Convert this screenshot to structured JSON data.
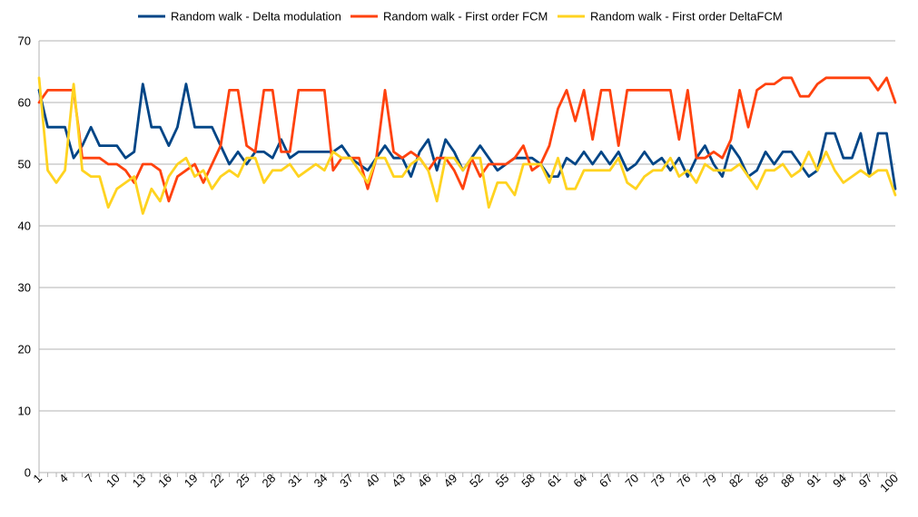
{
  "chart_data": {
    "type": "line",
    "title": "",
    "xlabel": "",
    "ylabel": "",
    "x": [
      1,
      2,
      3,
      4,
      5,
      6,
      7,
      8,
      9,
      10,
      11,
      12,
      13,
      14,
      15,
      16,
      17,
      18,
      19,
      20,
      21,
      22,
      23,
      24,
      25,
      26,
      27,
      28,
      29,
      30,
      31,
      32,
      33,
      34,
      35,
      36,
      37,
      38,
      39,
      40,
      41,
      42,
      43,
      44,
      45,
      46,
      47,
      48,
      49,
      50,
      51,
      52,
      53,
      54,
      55,
      56,
      57,
      58,
      59,
      60,
      61,
      62,
      63,
      64,
      65,
      66,
      67,
      68,
      69,
      70,
      71,
      72,
      73,
      74,
      75,
      76,
      77,
      78,
      79,
      80,
      81,
      82,
      83,
      84,
      85,
      86,
      87,
      88,
      89,
      90,
      91,
      92,
      93,
      94,
      95,
      96,
      97,
      98,
      99,
      100
    ],
    "x_tick_labels": [
      "1",
      "4",
      "7",
      "10",
      "13",
      "16",
      "19",
      "22",
      "25",
      "28",
      "31",
      "34",
      "37",
      "40",
      "43",
      "46",
      "49",
      "52",
      "55",
      "58",
      "61",
      "64",
      "67",
      "70",
      "73",
      "76",
      "79",
      "82",
      "85",
      "88",
      "91",
      "94",
      "97",
      "100"
    ],
    "ylim": [
      0,
      70
    ],
    "y_ticks": [
      0,
      10,
      20,
      30,
      40,
      50,
      60,
      70
    ],
    "grid": "horizontal",
    "legend_position": "top",
    "series": [
      {
        "name": "Random walk - Delta modulation",
        "color": "#004586",
        "values": [
          62,
          56,
          56,
          56,
          51,
          53,
          56,
          53,
          53,
          53,
          51,
          52,
          63,
          56,
          56,
          53,
          56,
          63,
          56,
          56,
          56,
          53,
          50,
          52,
          50,
          52,
          52,
          51,
          54,
          51,
          52,
          52,
          52,
          52,
          52,
          53,
          51,
          50,
          49,
          51,
          53,
          51,
          51,
          48,
          52,
          54,
          49,
          54,
          52,
          49,
          51,
          53,
          51,
          49,
          50,
          51,
          51,
          51,
          50,
          48,
          48,
          51,
          50,
          52,
          50,
          52,
          50,
          52,
          49,
          50,
          52,
          50,
          51,
          49,
          51,
          48,
          51,
          53,
          50,
          48,
          53,
          51,
          48,
          49,
          52,
          50,
          52,
          52,
          50,
          48,
          49,
          55,
          55,
          51,
          51,
          55,
          48,
          55,
          55,
          46
        ]
      },
      {
        "name": "Random walk - First order FCM",
        "color": "#ff420e",
        "values": [
          60,
          62,
          62,
          62,
          62,
          51,
          51,
          51,
          50,
          50,
          49,
          47,
          50,
          50,
          49,
          44,
          48,
          49,
          50,
          47,
          50,
          53,
          62,
          62,
          53,
          52,
          62,
          62,
          52,
          52,
          62,
          62,
          62,
          62,
          49,
          51,
          51,
          51,
          46,
          51,
          62,
          52,
          51,
          52,
          51,
          49,
          51,
          51,
          49,
          46,
          51,
          48,
          50,
          50,
          50,
          51,
          53,
          49,
          50,
          53,
          59,
          62,
          57,
          62,
          54,
          62,
          62,
          53,
          62,
          62,
          62,
          62,
          62,
          62,
          54,
          62,
          51,
          51,
          52,
          51,
          54,
          62,
          56,
          62,
          63,
          63,
          64,
          64,
          61,
          61,
          63,
          64,
          64,
          64,
          64,
          64,
          64,
          62,
          64,
          60
        ]
      },
      {
        "name": "Random walk - First order DeltaFCM",
        "color": "#ffd320",
        "values": [
          64,
          49,
          47,
          49,
          63,
          49,
          48,
          48,
          43,
          46,
          47,
          48,
          42,
          46,
          44,
          48,
          50,
          51,
          48,
          49,
          46,
          48,
          49,
          48,
          51,
          51,
          47,
          49,
          49,
          50,
          48,
          49,
          50,
          49,
          52,
          51,
          51,
          49,
          47,
          51,
          51,
          48,
          48,
          50,
          51,
          49,
          44,
          51,
          51,
          49,
          51,
          51,
          43,
          47,
          47,
          45,
          50,
          50,
          50,
          47,
          51,
          46,
          46,
          49,
          49,
          49,
          49,
          51,
          47,
          46,
          48,
          49,
          49,
          51,
          48,
          49,
          47,
          50,
          49,
          49,
          49,
          50,
          48,
          46,
          49,
          49,
          50,
          48,
          49,
          52,
          49,
          52,
          49,
          47,
          48,
          49,
          48,
          49,
          49,
          45
        ]
      }
    ]
  }
}
